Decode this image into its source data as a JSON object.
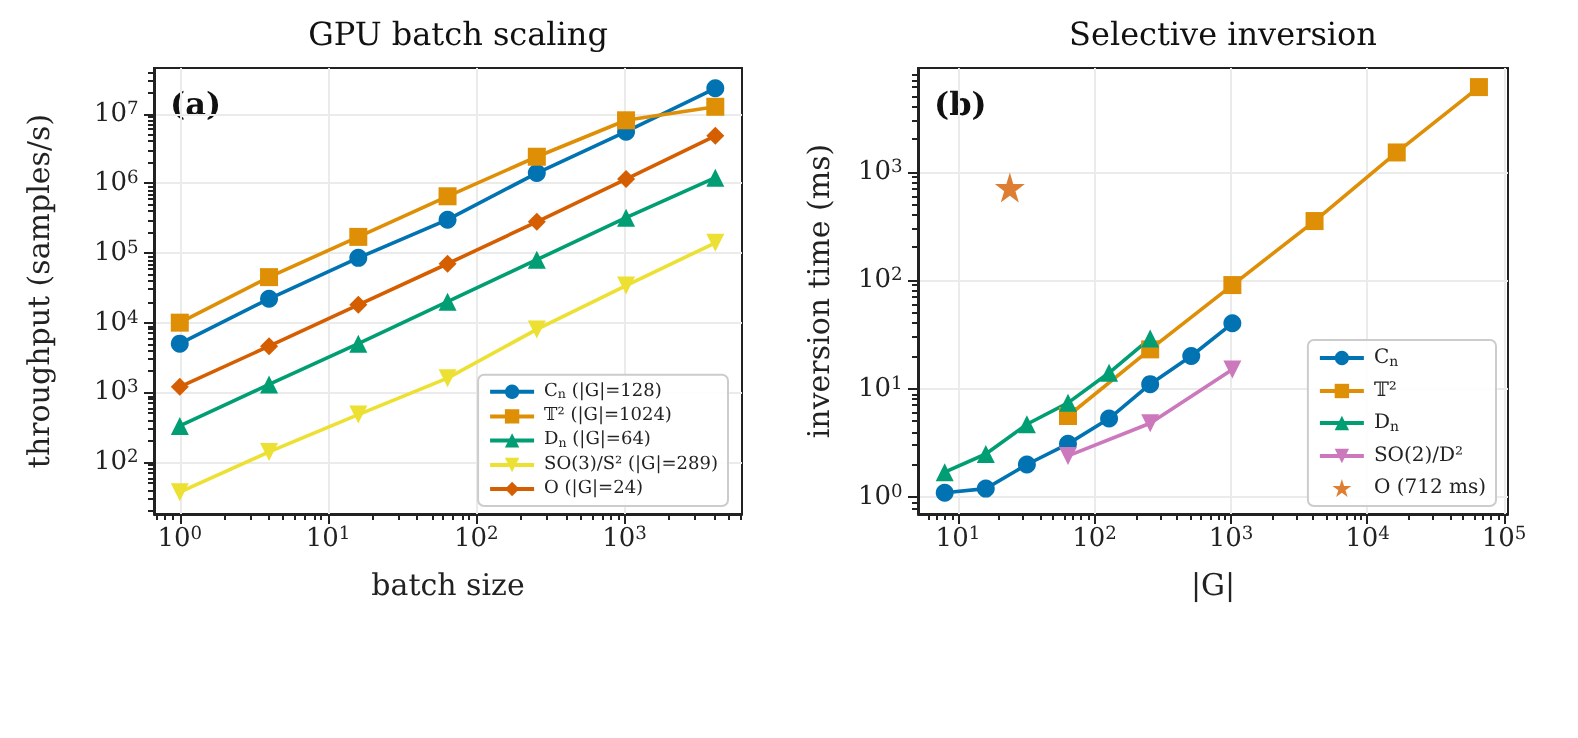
{
  "chart_data": [
    {
      "type": "line",
      "title": "GPU batch scaling",
      "xlabel": "batch size",
      "ylabel": "throughput (samples/s)",
      "annotations": [
        "(a)"
      ],
      "log": "xy",
      "grid": true,
      "legend": "bottom right",
      "x": [
        1,
        4,
        16,
        64,
        256,
        1024,
        4096
      ],
      "xlim": [
        0.67,
        6200
      ],
      "ylim": [
        18,
        45000000
      ],
      "xticks": [
        {
          "value": 1,
          "label": "10$^{0}$"
        },
        {
          "value": 10,
          "label": "10$^{1}$"
        },
        {
          "value": 100,
          "label": "10$^{2}$"
        },
        {
          "value": 1000,
          "label": "10$^{3}$"
        }
      ],
      "yticks": [
        {
          "value": 100,
          "label": "10$^{2}$"
        },
        {
          "value": 1000,
          "label": "10$^{3}$"
        },
        {
          "value": 10000,
          "label": "10$^{4}$"
        },
        {
          "value": 100000,
          "label": "10$^{5}$"
        },
        {
          "value": 1000000,
          "label": "10$^{6}$"
        },
        {
          "value": 10000000,
          "label": "10$^{7}$"
        }
      ],
      "series": [
        {
          "name": "C$_{n}$ (|G|=128)",
          "color": "#0173b2",
          "marker": "circle",
          "values": [
            5000,
            22000,
            85000,
            300000,
            1400000,
            5500000,
            23000000
          ]
        },
        {
          "name": "𝕋² (|G|=1024)",
          "color": "#de8f05",
          "marker": "square",
          "values": [
            10000,
            45000,
            170000,
            650000,
            2400000,
            8000000,
            12500000
          ]
        },
        {
          "name": "D$_{n}$ (|G|=64)",
          "color": "#029e73",
          "marker": "triangle",
          "values": [
            330,
            1300,
            5000,
            20000,
            80000,
            320000,
            1200000
          ]
        },
        {
          "name": "SO(3)/S² (|G|=289)",
          "color": "#ece133",
          "marker": "triangle_down",
          "values": [
            37,
            140,
            480,
            1600,
            8000,
            34000,
            140000
          ]
        },
        {
          "name": "O (|G|=24)",
          "color": "#d55e00",
          "marker": "diamond",
          "values": [
            1200,
            4600,
            18000,
            70000,
            280000,
            1150000,
            4800000
          ]
        }
      ]
    },
    {
      "type": "line",
      "title": "Selective inversion",
      "xlabel": "|G|",
      "ylabel": "inversion time (ms)",
      "annotations": [
        "(b)"
      ],
      "log": "xy",
      "grid": true,
      "legend": "bottom right",
      "xlim": [
        5.1,
        107000
      ],
      "ylim": [
        0.7,
        9000
      ],
      "xticks": [
        {
          "value": 10,
          "label": "10$^{1}$"
        },
        {
          "value": 100,
          "label": "10$^{2}$"
        },
        {
          "value": 1000,
          "label": "10$^{3}$"
        },
        {
          "value": 10000,
          "label": "10$^{4}$"
        },
        {
          "value": 100000,
          "label": "10$^{5}$"
        }
      ],
      "yticks": [
        {
          "value": 1,
          "label": "10$^{0}$"
        },
        {
          "value": 10,
          "label": "10$^{1}$"
        },
        {
          "value": 100,
          "label": "10$^{2}$"
        },
        {
          "value": 1000,
          "label": "10$^{3}$"
        }
      ],
      "series": [
        {
          "name": "C$_{n}$",
          "color": "#0173b2",
          "marker": "circle",
          "x": [
            8,
            16,
            32,
            64,
            128,
            256,
            512,
            1024
          ],
          "values": [
            1.1,
            1.2,
            2.0,
            3.1,
            5.3,
            11,
            20,
            40
          ]
        },
        {
          "name": "𝕋²",
          "color": "#de8f05",
          "marker": "square",
          "x": [
            64,
            256,
            1024,
            4096,
            16384,
            65536
          ],
          "values": [
            5.6,
            23,
            90,
            350,
            1500,
            6000
          ]
        },
        {
          "name": "D$_{n}$",
          "color": "#029e73",
          "marker": "triangle",
          "x": [
            8,
            16,
            32,
            64,
            128,
            256
          ],
          "values": [
            1.7,
            2.5,
            4.7,
            7.4,
            14,
            29
          ]
        },
        {
          "name": "SO(2)/D²",
          "color": "#cc78bc",
          "marker": "triangle_down",
          "x": [
            64,
            256,
            1024
          ],
          "values": [
            2.4,
            4.8,
            15
          ]
        },
        {
          "name": "O (712 ms)",
          "type": "scatter",
          "color": "#d55e00",
          "marker": "star",
          "x": [
            24
          ],
          "values": [
            712
          ]
        }
      ]
    }
  ]
}
